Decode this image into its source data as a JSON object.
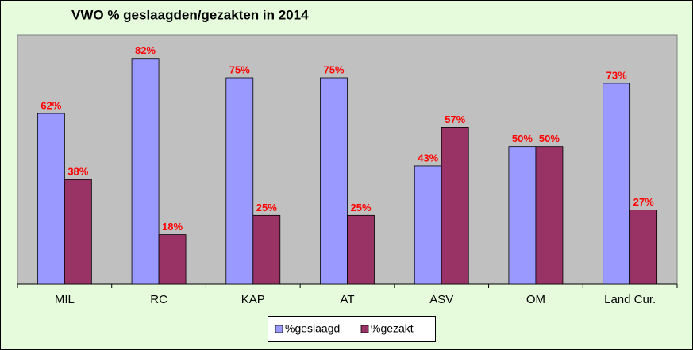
{
  "chart_data": {
    "type": "bar",
    "title": "VWO % geslaagden/gezakten in 2014",
    "categories": [
      "MIL",
      "RC",
      "KAP",
      "AT",
      "ASV",
      "OM",
      "Land Cur."
    ],
    "series": [
      {
        "name": "%geslaagd",
        "color": "#9999ff",
        "values": [
          62,
          82,
          75,
          75,
          43,
          50,
          73
        ],
        "value_labels": [
          "62%",
          "82%",
          "75%",
          "75%",
          "43%",
          "50%",
          "73%"
        ]
      },
      {
        "name": "%gezakt",
        "color": "#993366",
        "values": [
          38,
          18,
          25,
          25,
          57,
          50,
          27
        ],
        "value_labels": [
          "38%",
          "18%",
          "25%",
          "25%",
          "57%",
          "50%",
          "27%"
        ]
      }
    ],
    "ylim": [
      0,
      90
    ],
    "legend": "bottom"
  }
}
